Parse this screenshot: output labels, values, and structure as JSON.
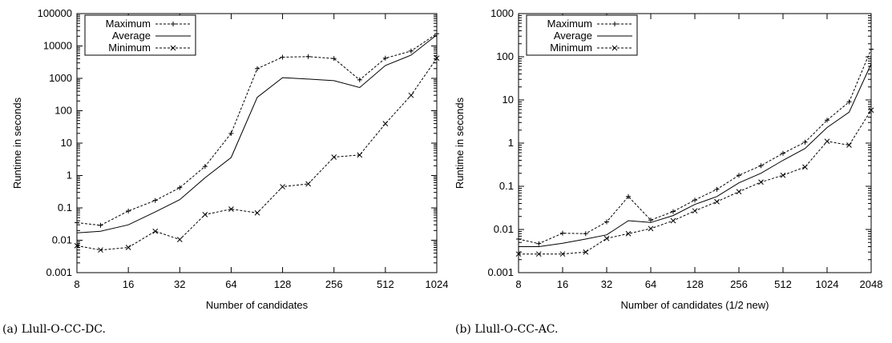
{
  "chart_data": [
    {
      "type": "line",
      "title": "",
      "xlabel": "Number of candidates",
      "ylabel": "Runtime in seconds",
      "x_scale": "log2",
      "y_scale": "log10",
      "xlim": [
        8,
        1024
      ],
      "ylim": [
        0.001,
        100000
      ],
      "x_ticks": [
        8,
        16,
        32,
        64,
        128,
        256,
        512,
        1024
      ],
      "x_tick_labels": [
        "8",
        "16",
        "32",
        "64",
        "128",
        "256",
        "512",
        "1024"
      ],
      "y_ticks": [
        0.001,
        0.01,
        0.1,
        1,
        10,
        100,
        1000,
        10000,
        100000
      ],
      "y_tick_labels": [
        "0.001",
        "0.01",
        "0.1",
        "1",
        "10",
        "100",
        "1000",
        "10000",
        "100000"
      ],
      "legend_position": "top-left",
      "x": [
        8,
        11,
        16,
        23,
        32,
        45,
        64,
        91,
        128,
        181,
        256,
        362,
        512,
        724,
        1024
      ],
      "series": [
        {
          "name": "Maximum",
          "style": "dashed",
          "marker": "plus",
          "values": [
            0.035,
            0.029,
            0.08,
            0.17,
            0.42,
            1.9,
            20,
            2000,
            4500,
            4700,
            4100,
            900,
            4200,
            7000,
            24000
          ]
        },
        {
          "name": "Average",
          "style": "solid",
          "marker": "none",
          "values": [
            0.017,
            0.019,
            0.03,
            0.075,
            0.18,
            0.85,
            3.6,
            260,
            1050,
            950,
            850,
            520,
            2500,
            5200,
            22000
          ]
        },
        {
          "name": "Minimum",
          "style": "dashed",
          "marker": "cross",
          "values": [
            0.0068,
            0.005,
            0.006,
            0.019,
            0.0105,
            0.062,
            0.092,
            0.07,
            0.45,
            0.55,
            3.7,
            4.3,
            40,
            300,
            4200
          ]
        }
      ],
      "caption": "(a) Llull-O-CC-DC."
    },
    {
      "type": "line",
      "title": "",
      "xlabel": "Number of candidates (1/2 new)",
      "ylabel": "Runtime in seconds",
      "x_scale": "log2",
      "y_scale": "log10",
      "xlim": [
        8,
        2048
      ],
      "ylim": [
        0.001,
        1000
      ],
      "x_ticks": [
        8,
        16,
        32,
        64,
        128,
        256,
        512,
        1024,
        2048
      ],
      "x_tick_labels": [
        "8",
        "16",
        "32",
        "64",
        "128",
        "256",
        "512",
        "1024",
        "2048"
      ],
      "y_ticks": [
        0.001,
        0.01,
        0.1,
        1,
        10,
        100,
        1000
      ],
      "y_tick_labels": [
        "0.001",
        "0.01",
        "0.1",
        "1",
        "10",
        "100",
        "1000"
      ],
      "legend_position": "top-left",
      "x": [
        8,
        11,
        16,
        23,
        32,
        45,
        64,
        91,
        128,
        181,
        256,
        362,
        512,
        724,
        1024,
        1448,
        2048
      ],
      "series": [
        {
          "name": "Maximum",
          "style": "dashed",
          "marker": "plus",
          "values": [
            0.006,
            0.0047,
            0.0082,
            0.008,
            0.015,
            0.058,
            0.0165,
            0.026,
            0.048,
            0.085,
            0.18,
            0.3,
            0.58,
            1.05,
            3.4,
            9,
            150
          ]
        },
        {
          "name": "Average",
          "style": "solid",
          "marker": "none",
          "values": [
            0.004,
            0.004,
            0.0048,
            0.006,
            0.0075,
            0.016,
            0.0145,
            0.021,
            0.038,
            0.058,
            0.12,
            0.2,
            0.4,
            0.75,
            2.3,
            5.2,
            68
          ]
        },
        {
          "name": "Minimum",
          "style": "dashed",
          "marker": "cross",
          "values": [
            0.0027,
            0.0027,
            0.0027,
            0.003,
            0.0062,
            0.008,
            0.0105,
            0.016,
            0.027,
            0.044,
            0.075,
            0.125,
            0.18,
            0.28,
            1.1,
            0.9,
            5.8
          ]
        }
      ],
      "caption": "(b) Llull-O-CC-AC."
    }
  ]
}
